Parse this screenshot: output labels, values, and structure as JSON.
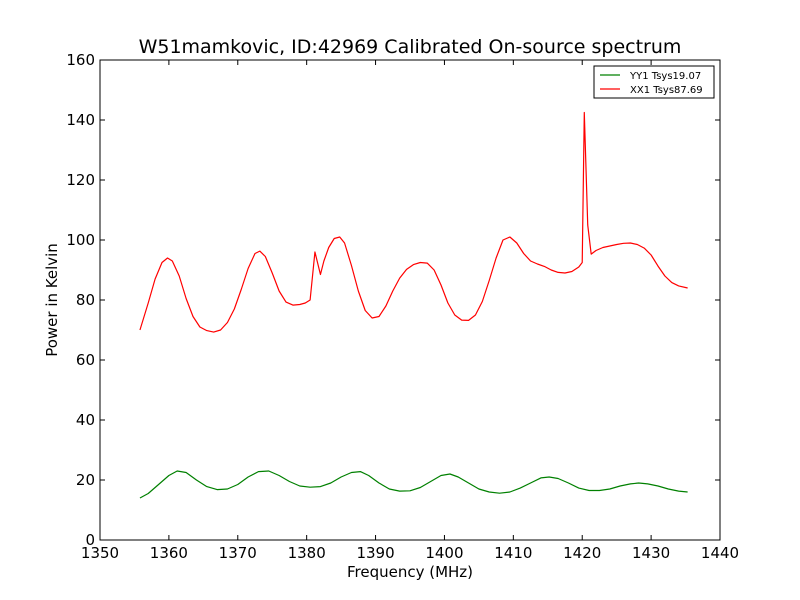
{
  "chart_data": {
    "type": "line",
    "title": "W51mamkovic, ID:42969 Calibrated On-source spectrum",
    "xlabel": "Frequency (MHz)",
    "ylabel": "Power in Kelvin",
    "xlim": [
      1350,
      1440
    ],
    "ylim": [
      0,
      160
    ],
    "xticks": [
      "1350",
      "1360",
      "1370",
      "1380",
      "1390",
      "1400",
      "1410",
      "1420",
      "1430",
      "1440"
    ],
    "yticks": [
      "0",
      "20",
      "40",
      "60",
      "80",
      "100",
      "120",
      "140",
      "160"
    ],
    "grid": false,
    "legend_position": "top-right",
    "series": [
      {
        "name": "YY1 Tsys19.07",
        "color": "#008000",
        "x": [
          1355.8,
          1357,
          1358.5,
          1360,
          1361.2,
          1362.5,
          1364,
          1365.5,
          1367,
          1368.5,
          1370,
          1371.5,
          1373,
          1374.5,
          1376,
          1377.5,
          1379,
          1380.5,
          1382,
          1383.5,
          1385,
          1386.5,
          1387.8,
          1389,
          1390.5,
          1392,
          1393.5,
          1395,
          1396.5,
          1398,
          1399.5,
          1400.8,
          1402,
          1403.5,
          1405,
          1406.5,
          1408,
          1409.5,
          1411,
          1412.5,
          1414,
          1415.2,
          1416.5,
          1418,
          1419.5,
          1421,
          1422.5,
          1424,
          1425.5,
          1427,
          1428.2,
          1429.5,
          1431,
          1432.5,
          1434,
          1435.3
        ],
        "y": [
          14,
          15.5,
          18.5,
          21.5,
          23,
          22.5,
          20,
          17.8,
          16.8,
          17,
          18.5,
          21,
          22.8,
          23,
          21.5,
          19.5,
          18,
          17.6,
          17.8,
          19,
          21,
          22.5,
          22.8,
          21.5,
          19,
          17,
          16.3,
          16.4,
          17.5,
          19.5,
          21.5,
          22,
          21,
          19,
          17,
          16,
          15.6,
          16,
          17.3,
          19,
          20.7,
          21,
          20.5,
          19,
          17.3,
          16.5,
          16.5,
          17,
          18,
          18.7,
          19,
          18.7,
          18,
          17,
          16.3,
          16
        ]
      },
      {
        "name": "XX1 Tsys87.69",
        "color": "#ff0000",
        "x": [
          1355.8,
          1357,
          1358,
          1359,
          1359.8,
          1360.5,
          1361.5,
          1362.5,
          1363.5,
          1364.5,
          1365.5,
          1366.5,
          1367.5,
          1368.5,
          1369.5,
          1370.5,
          1371.5,
          1372.5,
          1373.2,
          1374,
          1375,
          1376,
          1377,
          1378,
          1379,
          1379.8,
          1380.5,
          1381.2,
          1382,
          1382.5,
          1383.2,
          1384,
          1384.8,
          1385.5,
          1386.5,
          1387.5,
          1388.5,
          1389.5,
          1390.5,
          1391.5,
          1392.5,
          1393.5,
          1394.5,
          1395.5,
          1396.5,
          1397.5,
          1398.5,
          1399.5,
          1400.5,
          1401.5,
          1402.5,
          1403.5,
          1404.5,
          1405.5,
          1406.5,
          1407.5,
          1408.5,
          1409.5,
          1410.5,
          1411.5,
          1412.5,
          1413.5,
          1414.5,
          1415.5,
          1416.5,
          1417.5,
          1418.5,
          1419.5,
          1420,
          1420.3,
          1420.8,
          1421.3,
          1422,
          1423,
          1424,
          1425,
          1426,
          1427,
          1428,
          1429,
          1430,
          1431,
          1432,
          1433,
          1434,
          1435.3
        ],
        "y": [
          70,
          79,
          87,
          92.5,
          94,
          93,
          88,
          80.5,
          74.5,
          71,
          69.8,
          69.3,
          70,
          72.5,
          77,
          83.5,
          90.5,
          95.5,
          96.3,
          94.5,
          89,
          83,
          79.3,
          78.3,
          78.5,
          79,
          80,
          96,
          88.5,
          93,
          97.5,
          100.5,
          101,
          99,
          91.5,
          83,
          76.5,
          74,
          74.5,
          78,
          83,
          87.3,
          90.2,
          91.8,
          92.5,
          92.3,
          90,
          85,
          79,
          75,
          73.3,
          73.2,
          75,
          79.5,
          86.5,
          94,
          100,
          101,
          99,
          95.5,
          93,
          92,
          91.2,
          90,
          89.2,
          89,
          89.5,
          91,
          92.5,
          142.5,
          105,
          95.3,
          96.5,
          97.5,
          98,
          98.5,
          98.9,
          99,
          98.5,
          97.3,
          95,
          91.3,
          88,
          85.8,
          84.7,
          84
        ]
      }
    ]
  }
}
